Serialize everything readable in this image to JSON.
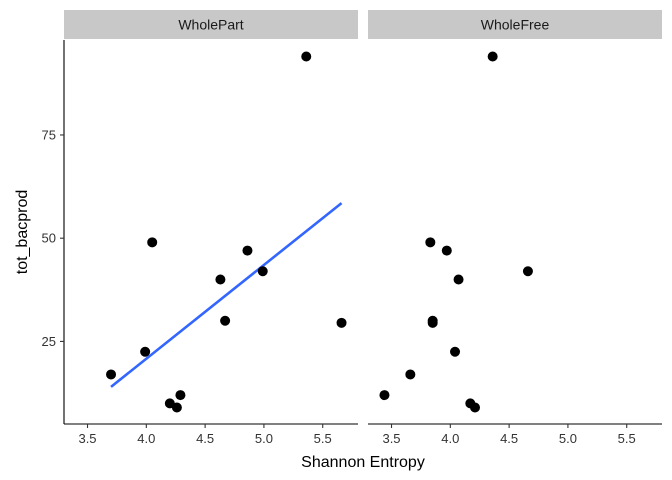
{
  "chart_data": {
    "type": "scatter",
    "xlabel": "Shannon Entropy",
    "ylabel": "tot_bacprod",
    "xlim": [
      3.3,
      5.8
    ],
    "ylim": [
      5,
      98
    ],
    "x_ticks": [
      3.5,
      4.0,
      4.5,
      5.0,
      5.5
    ],
    "x_tick_labels": [
      "3.5",
      "4.0",
      "4.5",
      "5.0",
      "5.5"
    ],
    "y_ticks": [
      25,
      50,
      75
    ],
    "y_tick_labels": [
      "25",
      "50",
      "75"
    ],
    "grid": false,
    "legend": "none",
    "colors": {
      "points": "#000000",
      "fit_line": "#3366ff",
      "strip": "#c8c8c8"
    },
    "panels": [
      {
        "name": "WholePart",
        "points": [
          {
            "x": 3.7,
            "y": 17.0
          },
          {
            "x": 3.99,
            "y": 22.5
          },
          {
            "x": 4.05,
            "y": 49.0
          },
          {
            "x": 4.2,
            "y": 10.0
          },
          {
            "x": 4.26,
            "y": 9.0
          },
          {
            "x": 4.29,
            "y": 12.0
          },
          {
            "x": 4.63,
            "y": 40.0
          },
          {
            "x": 4.67,
            "y": 30.0
          },
          {
            "x": 4.86,
            "y": 47.0
          },
          {
            "x": 4.99,
            "y": 42.0
          },
          {
            "x": 5.36,
            "y": 94.0
          },
          {
            "x": 5.66,
            "y": 29.5
          }
        ],
        "fit": {
          "x": [
            3.7,
            5.66
          ],
          "y": [
            14.0,
            58.5
          ]
        }
      },
      {
        "name": "WholeFree",
        "points": [
          {
            "x": 3.44,
            "y": 12.0
          },
          {
            "x": 3.66,
            "y": 17.0
          },
          {
            "x": 3.83,
            "y": 49.0
          },
          {
            "x": 3.85,
            "y": 29.5
          },
          {
            "x": 3.85,
            "y": 30.0
          },
          {
            "x": 3.97,
            "y": 47.0
          },
          {
            "x": 4.04,
            "y": 22.5
          },
          {
            "x": 4.07,
            "y": 40.0
          },
          {
            "x": 4.17,
            "y": 10.0
          },
          {
            "x": 4.21,
            "y": 9.0
          },
          {
            "x": 4.36,
            "y": 94.0
          },
          {
            "x": 4.66,
            "y": 42.0
          }
        ]
      }
    ]
  }
}
